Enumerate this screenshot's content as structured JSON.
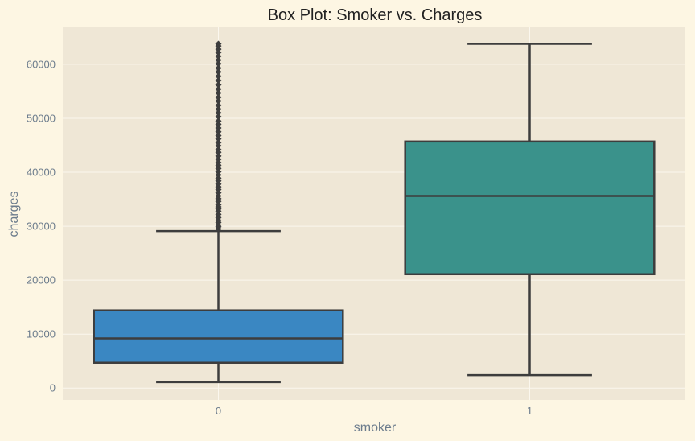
{
  "chart_data": {
    "type": "box",
    "title": "Box Plot: Smoker vs. Charges",
    "xlabel": "smoker",
    "ylabel": "charges",
    "categories": [
      "0",
      "1"
    ],
    "ylim": [
      -2200,
      67000
    ],
    "yticks": [
      0,
      10000,
      20000,
      30000,
      40000,
      50000,
      60000
    ],
    "ytick_labels": [
      "0",
      "10000",
      "20000",
      "30000",
      "40000",
      "50000",
      "60000"
    ],
    "grid": true,
    "boxes": [
      {
        "category": "0",
        "color": "#3a87c2",
        "whisker_low": 1100,
        "q1": 4700,
        "median": 9200,
        "q3": 14400,
        "whisker_high": 29100,
        "outliers": [
          29500,
          29900,
          30200,
          30700,
          31100,
          31600,
          32200,
          32800,
          33200,
          33600,
          34000,
          34600,
          35100,
          35600,
          36200,
          36800,
          37300,
          37800,
          38400,
          38900,
          39500,
          40100,
          40700,
          41300,
          41800,
          42400,
          43000,
          43700,
          44200,
          44900,
          45500,
          46200,
          46800,
          47500,
          48200,
          48900,
          49500,
          50300,
          51000,
          51700,
          52400,
          53200,
          53900,
          54700,
          55400,
          56200,
          57000,
          57800,
          58600,
          59300,
          60100,
          60800,
          61500,
          62200,
          62800,
          63400,
          63800
        ]
      },
      {
        "category": "1",
        "color": "#3a928b",
        "whisker_low": 2400,
        "q1": 21100,
        "median": 35600,
        "q3": 45700,
        "whisker_high": 63800,
        "outliers": []
      }
    ]
  },
  "colors": {
    "page_background": "#fdf6e3",
    "plot_background": "#efe7d6",
    "grid": "#fbf7ee",
    "box_line": "#3d3d3d",
    "text": "#6b7b8c"
  }
}
